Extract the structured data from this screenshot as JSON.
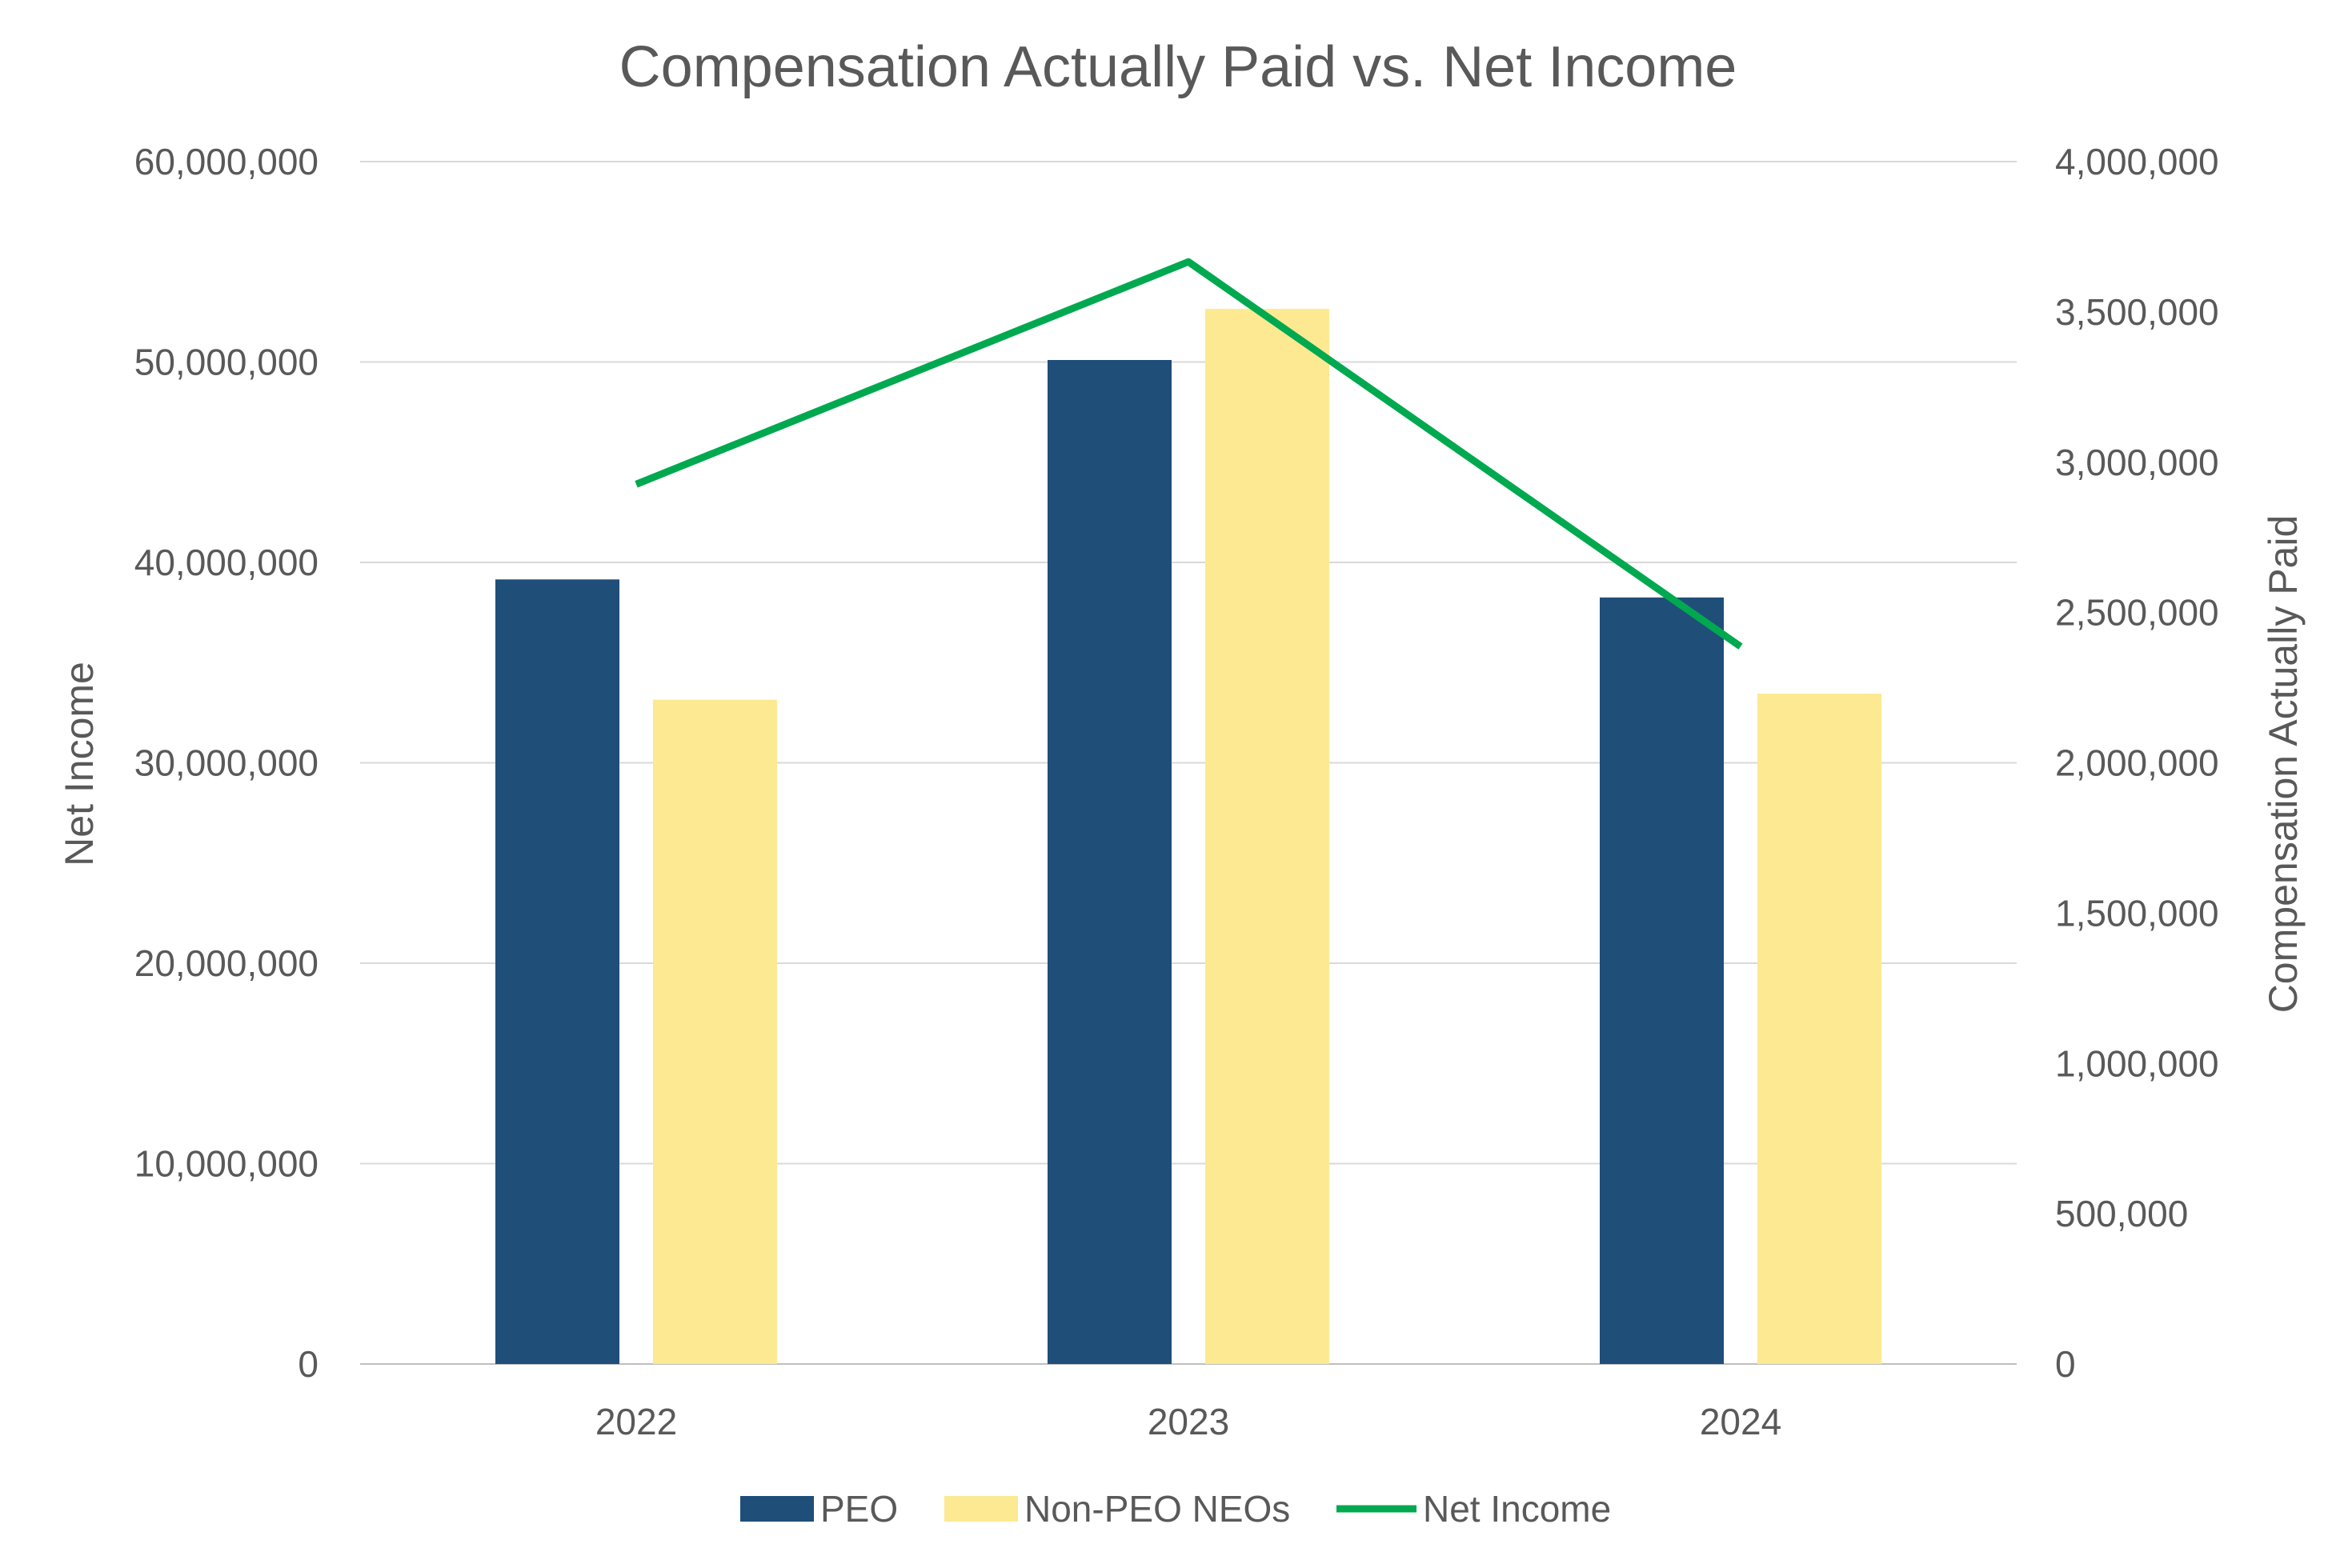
{
  "chart_data": {
    "type": "bar",
    "title": "Compensation Actually Paid vs. Net Income",
    "categories": [
      "2022",
      "2023",
      "2024"
    ],
    "y_left": {
      "label": "Net Income",
      "range": [
        0,
        60000000
      ],
      "ticks": [
        "0",
        "10,000,000",
        "20,000,000",
        "30,000,000",
        "40,000,000",
        "50,000,000",
        "60,000,000"
      ]
    },
    "y_right": {
      "label": "Compensation Actually Paid",
      "range": [
        0,
        4000000
      ],
      "ticks": [
        "0",
        "500,000",
        "1,000,000",
        "1,500,000",
        "2,000,000",
        "2,500,000",
        "3,000,000",
        "3,500,000",
        "4,000,000"
      ]
    },
    "grid": true,
    "legend_position": "bottom",
    "series": [
      {
        "name": "PEO",
        "type": "bar",
        "axis": "right",
        "color": "#1F4E79",
        "values": [
          2610000,
          3340000,
          2550000
        ]
      },
      {
        "name": "Non-PEO NEOs",
        "type": "bar",
        "axis": "right",
        "color": "#FDE992",
        "values": [
          2210000,
          3510000,
          2230000
        ]
      },
      {
        "name": "Net Income",
        "type": "line",
        "axis": "left",
        "color": "#00A94F",
        "values": [
          43900000,
          55000000,
          35800000
        ]
      }
    ]
  }
}
